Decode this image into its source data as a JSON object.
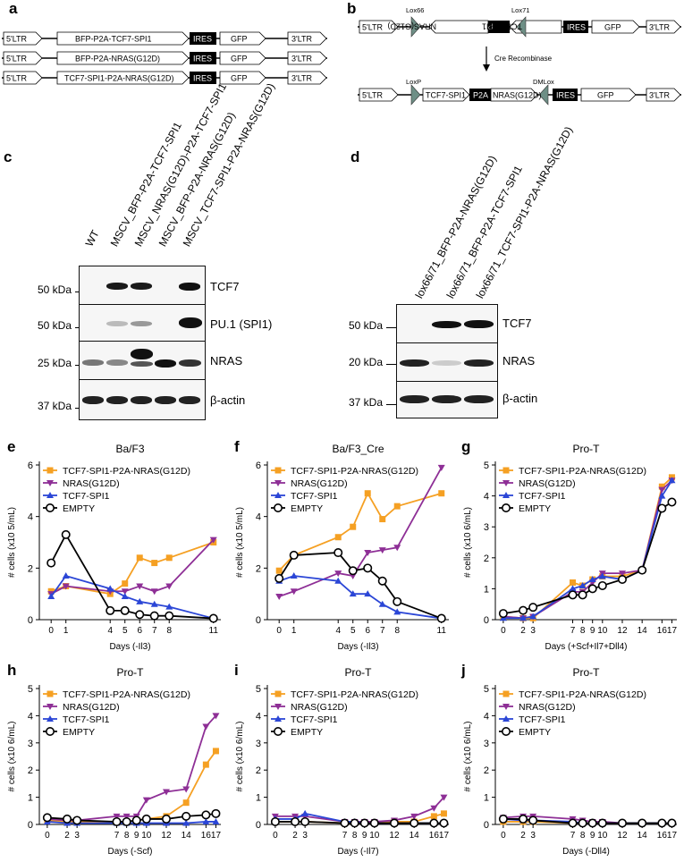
{
  "panels": {
    "a": "a",
    "b": "b",
    "c": "c",
    "d": "d",
    "e": "e",
    "f": "f",
    "g": "g",
    "h": "h",
    "i": "i",
    "j": "j"
  },
  "constructs_a": [
    {
      "ltr5": "5'LTR",
      "insert": "BFP-P2A-TCF7-SPI1",
      "ires": "IRES",
      "gfp": "GFP",
      "ltr3": "3'LTR"
    },
    {
      "ltr5": "5'LTR",
      "insert": "BFP-P2A-NRAS(G12D)",
      "ires": "IRES",
      "gfp": "GFP",
      "ltr3": "3'LTR"
    },
    {
      "ltr5": "5'LTR",
      "insert": "TCF7-SPI1-P2A-NRAS(G12D)",
      "ires": "IRES",
      "gfp": "GFP",
      "ltr3": "3'LTR"
    }
  ],
  "construct_b": {
    "top": {
      "ltr5": "5'LTR",
      "lox1": "Lox66",
      "lox2": "Lox71",
      "nras": "NRAS(G12D)",
      "p2a": "P2A",
      "tcf": "TCF7-SPI1",
      "ires": "IRES",
      "gfp": "GFP",
      "ltr3": "3'LTR"
    },
    "arrow_label": "Cre Recombinase",
    "bottom": {
      "ltr5": "5'LTR",
      "lox1": "LoxP",
      "lox2": "DMLox",
      "tcf": "TCF7-SPI1",
      "p2a": "P2A",
      "nras": "NRAS(G12D)",
      "ires": "IRES",
      "gfp": "GFP",
      "ltr3": "3'LTR"
    }
  },
  "blot_c": {
    "lanes": [
      "WT",
      "MSCV_BFP-P2A-TCF7-SPI1",
      "MSCV_NRAS(G12D)-P2A-TCF7-SPI1",
      "MSCV_BFP-P2A-NRAS(G12D)",
      "MSCV_TCF7-SPI1-P2A-NRAS(G12D)"
    ],
    "rows": [
      {
        "mw": "50 kDa",
        "label": "TCF7"
      },
      {
        "mw": "50 kDa",
        "label": "PU.1 (SPI1)"
      },
      {
        "mw": "25 kDa",
        "label": "NRAS"
      },
      {
        "mw": "37 kDa",
        "label": "β-actin"
      }
    ]
  },
  "blot_d": {
    "lanes": [
      "lox66/71_BFP-P2A-NRAS(G12D)",
      "lox66/71_BFP-P2A-TCF7-SPI1",
      "lox66/71_TCF7-SPI1-P2A-NRAS(G12D)"
    ],
    "rows": [
      {
        "mw": "50 kDa",
        "label": "TCF7"
      },
      {
        "mw": "20 kDa",
        "label": "NRAS"
      },
      {
        "mw": "37 kDa",
        "label": "β-actin"
      }
    ]
  },
  "colors": {
    "tcfnras": "#f5a023",
    "nras": "#8e2f96",
    "tcf": "#2b46d6",
    "empty": "#000000"
  },
  "legend": [
    "TCF7-SPI1-P2A-NRAS(G12D)",
    "NRAS(G12D)",
    "TCF7-SPI1",
    "EMPTY"
  ],
  "chart_data": [
    {
      "panel": "e",
      "type": "line",
      "title": "Ba/F3",
      "xlabel": "Days (-Il3)",
      "ylabel": "# cells (x10 5/mL)",
      "xlim": [
        -0.8,
        11.5
      ],
      "ylim": [
        0,
        6
      ],
      "xticks": [
        0,
        1,
        4,
        5,
        6,
        7,
        8,
        11
      ],
      "yticks": [
        0,
        2,
        4,
        6
      ],
      "series": [
        {
          "name": "TCF7-SPI1-P2A-NRAS(G12D)",
          "x": [
            0,
            1,
            4,
            5,
            6,
            7,
            8,
            11
          ],
          "y": [
            1.1,
            1.3,
            1.0,
            1.4,
            2.4,
            2.2,
            2.4,
            3.0
          ]
        },
        {
          "name": "NRAS(G12D)",
          "x": [
            0,
            1,
            4,
            5,
            6,
            7,
            8,
            11
          ],
          "y": [
            1.0,
            1.3,
            1.1,
            1.1,
            1.3,
            1.1,
            1.3,
            3.1
          ]
        },
        {
          "name": "TCF7-SPI1",
          "x": [
            0,
            1,
            4,
            5,
            6,
            7,
            8,
            11
          ],
          "y": [
            0.9,
            1.7,
            1.2,
            0.9,
            0.7,
            0.6,
            0.5,
            0.05
          ]
        },
        {
          "name": "EMPTY",
          "x": [
            0,
            1,
            4,
            5,
            6,
            7,
            8,
            11
          ],
          "y": [
            2.2,
            3.3,
            0.35,
            0.35,
            0.2,
            0.15,
            0.15,
            0.05
          ]
        }
      ]
    },
    {
      "panel": "f",
      "type": "line",
      "title": "Ba/F3_Cre",
      "xlabel": "Days (-Il3)",
      "ylabel": "# cells (x10 5/mL)",
      "xlim": [
        -0.8,
        11.5
      ],
      "ylim": [
        0,
        6
      ],
      "xticks": [
        0,
        1,
        4,
        5,
        6,
        7,
        8,
        11
      ],
      "yticks": [
        0,
        2,
        4,
        6
      ],
      "series": [
        {
          "name": "TCF7-SPI1-P2A-NRAS(G12D)",
          "x": [
            0,
            1,
            4,
            5,
            6,
            7,
            8,
            11
          ],
          "y": [
            1.9,
            2.5,
            3.2,
            3.6,
            4.9,
            3.9,
            4.4,
            4.9
          ]
        },
        {
          "name": "NRAS(G12D)",
          "x": [
            0,
            1,
            4,
            5,
            6,
            7,
            8,
            11
          ],
          "y": [
            0.9,
            1.1,
            1.8,
            1.7,
            2.6,
            2.7,
            2.8,
            5.9
          ]
        },
        {
          "name": "TCF7-SPI1",
          "x": [
            0,
            1,
            4,
            5,
            6,
            7,
            8,
            11
          ],
          "y": [
            1.5,
            1.7,
            1.5,
            1.0,
            1.0,
            0.6,
            0.3,
            0.05
          ]
        },
        {
          "name": "EMPTY",
          "x": [
            0,
            1,
            4,
            5,
            6,
            7,
            8,
            11
          ],
          "y": [
            1.6,
            2.5,
            2.6,
            1.9,
            2.0,
            1.5,
            0.7,
            0.05
          ]
        }
      ]
    },
    {
      "panel": "g",
      "type": "line",
      "title": "Pro-T",
      "xlabel": "Days (+Scf+Il7+Dll4)",
      "ylabel": "# cells (x10 6/mL)",
      "xlim": [
        -0.8,
        17.5
      ],
      "ylim": [
        0,
        5
      ],
      "xticks": [
        0,
        2,
        3,
        7,
        8,
        9,
        10,
        12,
        14,
        16,
        17
      ],
      "yticks": [
        0,
        1,
        2,
        3,
        4,
        5
      ],
      "series": [
        {
          "name": "TCF7-SPI1-P2A-NRAS(G12D)",
          "x": [
            0,
            2,
            3,
            7,
            8,
            9,
            10,
            12,
            14,
            16,
            17
          ],
          "y": [
            0.1,
            0.05,
            0.05,
            1.2,
            1.1,
            1.3,
            1.4,
            1.4,
            1.6,
            4.3,
            4.6
          ]
        },
        {
          "name": "NRAS(G12D)",
          "x": [
            0,
            2,
            3,
            7,
            8,
            9,
            10,
            12,
            14,
            16,
            17
          ],
          "y": [
            0.1,
            0.05,
            0.1,
            0.9,
            0.9,
            1.2,
            1.5,
            1.5,
            1.6,
            4.2,
            4.5
          ]
        },
        {
          "name": "TCF7-SPI1",
          "x": [
            0,
            2,
            3,
            7,
            8,
            9,
            10,
            12,
            14,
            16,
            17
          ],
          "y": [
            0.05,
            0.05,
            0.1,
            1.0,
            1.1,
            1.3,
            1.4,
            1.3,
            1.6,
            4.0,
            4.5
          ]
        },
        {
          "name": "EMPTY",
          "x": [
            0,
            2,
            3,
            7,
            8,
            9,
            10,
            12,
            14,
            16,
            17
          ],
          "y": [
            0.2,
            0.3,
            0.4,
            0.8,
            0.8,
            1.0,
            1.1,
            1.3,
            1.6,
            3.6,
            3.8
          ]
        }
      ]
    },
    {
      "panel": "h",
      "type": "line",
      "title": "Pro-T",
      "xlabel": "Days (-Scf)",
      "ylabel": "# cells (x10 6/mL)",
      "xlim": [
        -0.8,
        17.5
      ],
      "ylim": [
        0,
        5
      ],
      "xticks": [
        0,
        2,
        3,
        7,
        8,
        9,
        10,
        12,
        14,
        16,
        17
      ],
      "yticks": [
        0,
        1,
        2,
        3,
        4,
        5
      ],
      "series": [
        {
          "name": "TCF7-SPI1-P2A-NRAS(G12D)",
          "x": [
            0,
            2,
            3,
            7,
            8,
            9,
            10,
            12,
            14,
            16,
            17
          ],
          "y": [
            0.15,
            0.1,
            0.1,
            0.1,
            0.1,
            0.15,
            0.2,
            0.3,
            0.8,
            2.2,
            2.7
          ]
        },
        {
          "name": "NRAS(G12D)",
          "x": [
            0,
            2,
            3,
            7,
            8,
            9,
            10,
            12,
            14,
            16,
            17
          ],
          "y": [
            0.2,
            0.15,
            0.15,
            0.3,
            0.3,
            0.3,
            0.9,
            1.2,
            1.3,
            3.6,
            4.0
          ]
        },
        {
          "name": "TCF7-SPI1",
          "x": [
            0,
            2,
            3,
            7,
            8,
            9,
            10,
            12,
            14,
            16,
            17
          ],
          "y": [
            0.1,
            0.05,
            0.05,
            0.05,
            0.05,
            0.05,
            0.05,
            0.05,
            0.05,
            0.1,
            0.1
          ]
        },
        {
          "name": "EMPTY",
          "x": [
            0,
            2,
            3,
            7,
            8,
            9,
            10,
            12,
            14,
            16,
            17
          ],
          "y": [
            0.25,
            0.2,
            0.15,
            0.1,
            0.1,
            0.15,
            0.2,
            0.2,
            0.3,
            0.35,
            0.4
          ]
        }
      ]
    },
    {
      "panel": "i",
      "type": "line",
      "title": "Pro-T",
      "xlabel": "Days (-Il7)",
      "ylabel": "# cells (x10 6/mL)",
      "xlim": [
        -0.8,
        17.5
      ],
      "ylim": [
        0,
        5
      ],
      "xticks": [
        0,
        2,
        3,
        7,
        8,
        9,
        10,
        12,
        14,
        16,
        17
      ],
      "yticks": [
        0,
        1,
        2,
        3,
        4,
        5
      ],
      "series": [
        {
          "name": "TCF7-SPI1-P2A-NRAS(G12D)",
          "x": [
            0,
            2,
            3,
            7,
            8,
            9,
            10,
            12,
            14,
            16,
            17
          ],
          "y": [
            0.1,
            0.1,
            0.1,
            0.05,
            0.05,
            0.05,
            0.05,
            0.1,
            0.1,
            0.3,
            0.4
          ]
        },
        {
          "name": "NRAS(G12D)",
          "x": [
            0,
            2,
            3,
            7,
            8,
            9,
            10,
            12,
            14,
            16,
            17
          ],
          "y": [
            0.3,
            0.3,
            0.3,
            0.1,
            0.1,
            0.1,
            0.1,
            0.15,
            0.3,
            0.6,
            1.0
          ]
        },
        {
          "name": "TCF7-SPI1",
          "x": [
            0,
            2,
            3,
            7,
            8,
            9,
            10,
            12,
            14,
            16,
            17
          ],
          "y": [
            0.2,
            0.2,
            0.4,
            0.1,
            0.1,
            0.05,
            0.05,
            0.05,
            0.05,
            0.05,
            0.05
          ]
        },
        {
          "name": "EMPTY",
          "x": [
            0,
            2,
            3,
            7,
            8,
            9,
            10,
            12,
            14,
            16,
            17
          ],
          "y": [
            0.1,
            0.1,
            0.1,
            0.05,
            0.05,
            0.05,
            0.05,
            0.05,
            0.05,
            0.05,
            0.05
          ]
        }
      ]
    },
    {
      "panel": "j",
      "type": "line",
      "title": "Pro-T",
      "xlabel": "Days (-Dll4)",
      "ylabel": "# cells (x10 6/mL)",
      "xlim": [
        -0.8,
        17.5
      ],
      "ylim": [
        0,
        5
      ],
      "xticks": [
        0,
        2,
        3,
        7,
        8,
        9,
        10,
        12,
        14,
        16,
        17
      ],
      "yticks": [
        0,
        1,
        2,
        3,
        4,
        5
      ],
      "series": [
        {
          "name": "TCF7-SPI1-P2A-NRAS(G12D)",
          "x": [
            0,
            2,
            3,
            7,
            8,
            9,
            10,
            12,
            14,
            16,
            17
          ],
          "y": [
            0.1,
            0.1,
            0.1,
            0.05,
            0.05,
            0.05,
            0.05,
            0.05,
            0.05,
            0.05,
            0.05
          ]
        },
        {
          "name": "NRAS(G12D)",
          "x": [
            0,
            2,
            3,
            7,
            8,
            9,
            10,
            12,
            14,
            16,
            17
          ],
          "y": [
            0.25,
            0.3,
            0.3,
            0.2,
            0.15,
            0.1,
            0.1,
            0.05,
            0.05,
            0.05,
            0.05
          ]
        },
        {
          "name": "TCF7-SPI1",
          "x": [
            0,
            2,
            3,
            7,
            8,
            9,
            10,
            12,
            14,
            16,
            17
          ],
          "y": [
            0.2,
            0.15,
            0.15,
            0.1,
            0.05,
            0.05,
            0.05,
            0.05,
            0.05,
            0.05,
            0.05
          ]
        },
        {
          "name": "EMPTY",
          "x": [
            0,
            2,
            3,
            7,
            8,
            9,
            10,
            12,
            14,
            16,
            17
          ],
          "y": [
            0.2,
            0.2,
            0.15,
            0.05,
            0.05,
            0.05,
            0.05,
            0.05,
            0.05,
            0.05,
            0.05
          ]
        }
      ]
    }
  ]
}
